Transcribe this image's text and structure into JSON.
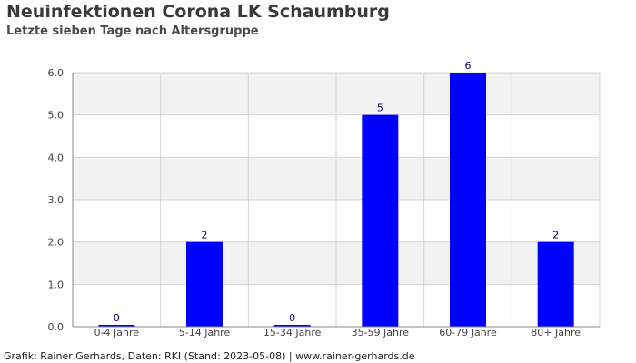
{
  "title": "Neuinfektionen Corona LK Schaumburg",
  "subtitle": "Letzte sieben Tage nach Altersgruppe",
  "footer": "Grafik: Rainer Gerhards, Daten: RKI (Stand: 2023-05-08) | www.rainer-gerhards.de",
  "chart_data": {
    "type": "bar",
    "title": "Neuinfektionen Corona LK Schaumburg",
    "subtitle": "Letzte sieben Tage nach Altersgruppe",
    "xlabel": "",
    "ylabel": "",
    "categories": [
      "0-4 Jahre",
      "5-14 Jahre",
      "15-34 Jahre",
      "35-59 Jahre",
      "60-79 Jahre",
      "80+ Jahre"
    ],
    "values": [
      0,
      2,
      0,
      5,
      6,
      2
    ],
    "data_labels": [
      "0",
      "2",
      "0",
      "5",
      "6",
      "2"
    ],
    "ylim": [
      0,
      6
    ],
    "yticks": [
      "0.0",
      "1.0",
      "2.0",
      "3.0",
      "4.0",
      "5.0",
      "6.0"
    ],
    "grid": true,
    "legend": "none",
    "colors": {
      "bar": "#0000ff",
      "band": "#f2f2f2",
      "grid": "#d4d4d4",
      "axis": "#888888",
      "data_label": "#000066"
    }
  }
}
